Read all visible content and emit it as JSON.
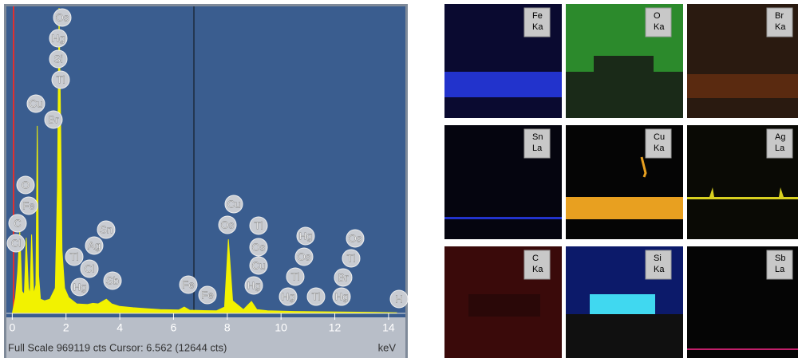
{
  "chart_data": {
    "type": "area",
    "color": "#f2f200",
    "x": [
      0,
      0.12,
      0.2,
      0.28,
      0.36,
      0.45,
      0.52,
      0.6,
      0.66,
      0.72,
      0.8,
      0.88,
      0.93,
      0.98,
      1.05,
      1.2,
      1.4,
      1.6,
      1.68,
      1.74,
      1.8,
      1.85,
      1.95,
      2.1,
      2.4,
      2.8,
      3.0,
      3.2,
      3.5,
      3.7,
      4.0,
      4.5,
      5.0,
      5.5,
      6.2,
      6.4,
      6.6,
      7.0,
      7.6,
      7.9,
      8.04,
      8.2,
      8.6,
      8.9,
      9.1,
      9.5,
      10.5,
      11.5,
      12.5,
      13.5,
      14.3
    ],
    "values": [
      0,
      50000,
      130000,
      260000,
      70000,
      60000,
      240000,
      80000,
      60000,
      250000,
      60000,
      90000,
      595000,
      120000,
      45000,
      40000,
      45000,
      80000,
      400000,
      969119,
      600000,
      200000,
      80000,
      50000,
      30000,
      28000,
      32000,
      30000,
      45000,
      30000,
      22000,
      18000,
      15000,
      12000,
      11000,
      20000,
      10000,
      9000,
      8000,
      20000,
      235000,
      40000,
      12000,
      38000,
      12000,
      8000,
      6000,
      5000,
      4000,
      3000,
      2000
    ],
    "xlim": [
      -0.1,
      14.3
    ],
    "ylim": [
      0,
      969119
    ],
    "xticks": [
      0,
      2,
      4,
      6,
      8,
      10,
      12,
      14
    ],
    "x_label": "keV",
    "footer": "Full Scale 969119 cts Cursor: 6.562  (12644 cts)",
    "peak_labels": [
      "Os",
      "Hg",
      "Si",
      "Tl",
      "Cu",
      "Br",
      "O",
      "Fe",
      "C",
      "Cl",
      "Sn",
      "Ag",
      "Tl",
      "Cl",
      "Hg",
      "Sb",
      "Fe",
      "Fe",
      "Cu",
      "Os",
      "Tl",
      "Os",
      "Cu",
      "Hg",
      "Hg",
      "Os",
      "Tl",
      "Hg",
      "Tl",
      "Os",
      "Tl",
      "Br",
      "Hg",
      "H"
    ]
  },
  "maps": [
    {
      "element": "Fe",
      "line": "Ka"
    },
    {
      "element": "O",
      "line": "Ka"
    },
    {
      "element": "Br",
      "line": "Ka"
    },
    {
      "element": "Sn",
      "line": "La"
    },
    {
      "element": "Cu",
      "line": "Ka"
    },
    {
      "element": "Ag",
      "line": "La"
    },
    {
      "element": "C",
      "line": "Ka"
    },
    {
      "element": "Si",
      "line": "Ka"
    },
    {
      "element": "Sb",
      "line": "La"
    }
  ]
}
